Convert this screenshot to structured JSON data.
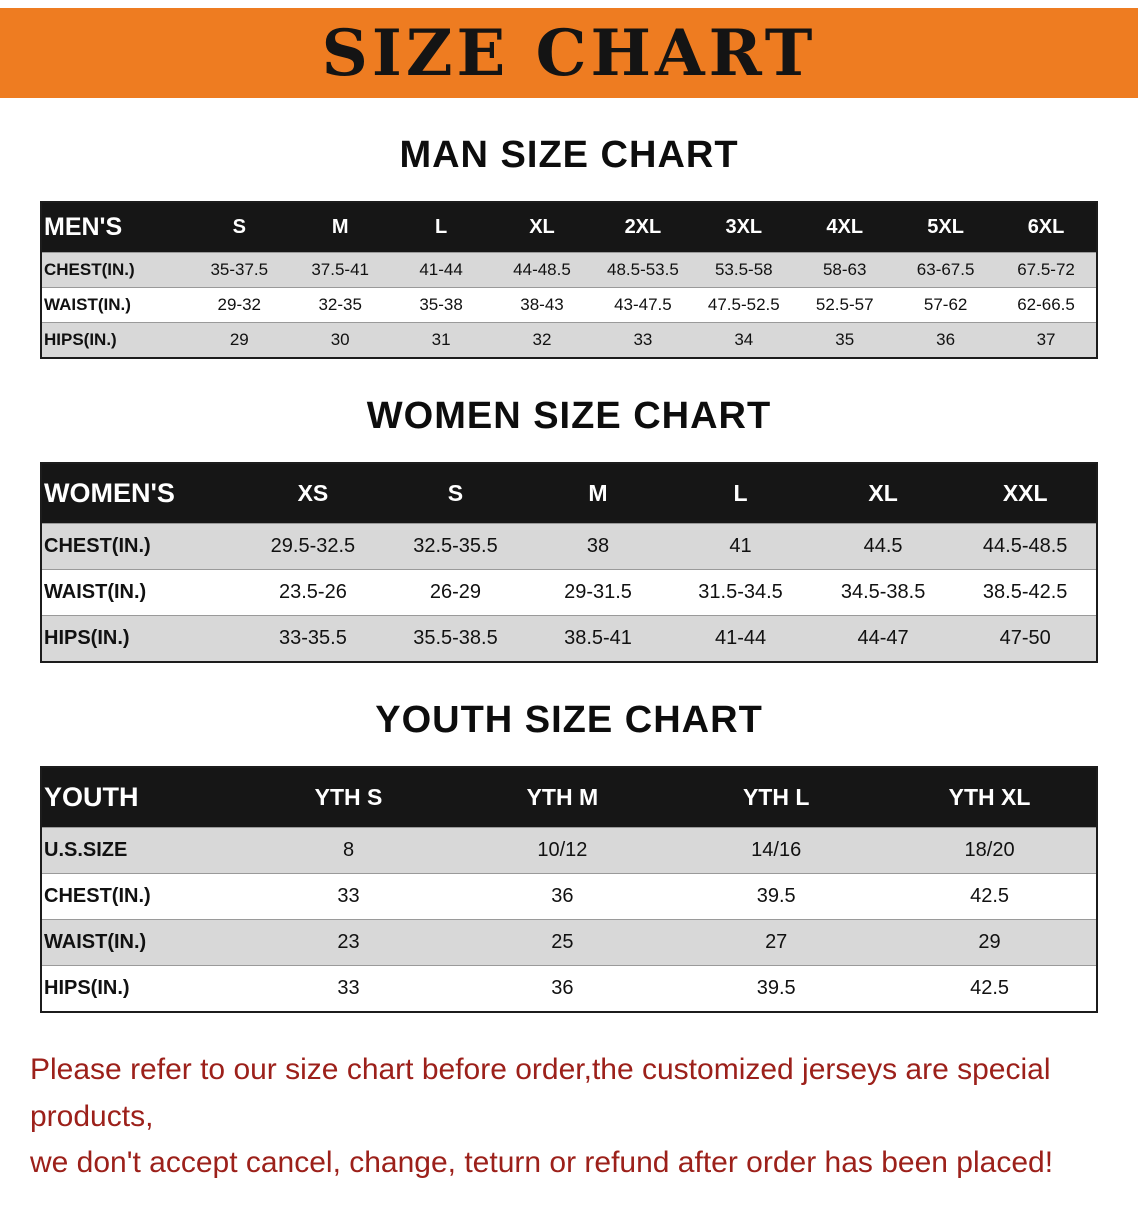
{
  "colors": {
    "banner_bg": "#ee7c21",
    "table_header_bg": "#161616",
    "stripe_bg": "#d8d8d8",
    "notice_color": "#9c201a"
  },
  "banner": {
    "title": "SIZE CHART"
  },
  "sections": [
    {
      "id": "mens",
      "heading": "MAN SIZE CHART",
      "header": [
        "MEN'S",
        "S",
        "M",
        "L",
        "XL",
        "2XL",
        "3XL",
        "4XL",
        "5XL",
        "6XL"
      ],
      "rows": [
        {
          "label": "CHEST(IN.)",
          "values": [
            "35-37.5",
            "37.5-41",
            "41-44",
            "44-48.5",
            "48.5-53.5",
            "53.5-58",
            "58-63",
            "63-67.5",
            "67.5-72"
          ]
        },
        {
          "label": "WAIST(IN.)",
          "values": [
            "29-32",
            "32-35",
            "35-38",
            "38-43",
            "43-47.5",
            "47.5-52.5",
            "52.5-57",
            "57-62",
            "62-66.5"
          ]
        },
        {
          "label": "HIPS(IN.)",
          "values": [
            "29",
            "30",
            "31",
            "32",
            "33",
            "34",
            "35",
            "36",
            "37"
          ]
        }
      ]
    },
    {
      "id": "womens",
      "heading": "WOMEN SIZE CHART",
      "header": [
        "WOMEN'S",
        "XS",
        "S",
        "M",
        "L",
        "XL",
        "XXL"
      ],
      "rows": [
        {
          "label": "CHEST(IN.)",
          "values": [
            "29.5-32.5",
            "32.5-35.5",
            "38",
            "41",
            "44.5",
            "44.5-48.5"
          ]
        },
        {
          "label": "WAIST(IN.)",
          "values": [
            "23.5-26",
            "26-29",
            "29-31.5",
            "31.5-34.5",
            "34.5-38.5",
            "38.5-42.5"
          ]
        },
        {
          "label": "HIPS(IN.)",
          "values": [
            "33-35.5",
            "35.5-38.5",
            "38.5-41",
            "41-44",
            "44-47",
            "47-50"
          ]
        }
      ]
    },
    {
      "id": "youth",
      "heading": "YOUTH SIZE CHART",
      "header": [
        "YOUTH",
        "YTH S",
        "YTH M",
        "YTH L",
        "YTH XL"
      ],
      "rows": [
        {
          "label": "U.S.SIZE",
          "values": [
            "8",
            "10/12",
            "14/16",
            "18/20"
          ]
        },
        {
          "label": "CHEST(IN.)",
          "values": [
            "33",
            "36",
            "39.5",
            "42.5"
          ]
        },
        {
          "label": "WAIST(IN.)",
          "values": [
            "23",
            "25",
            "27",
            "29"
          ]
        },
        {
          "label": "HIPS(IN.)",
          "values": [
            "33",
            "36",
            "39.5",
            "42.5"
          ]
        }
      ]
    }
  ],
  "footer": {
    "lines": [
      "Please refer to our size chart before order,the customized jerseys are special products,",
      "we don't accept cancel, change, teturn or refund after order has been placed!"
    ]
  }
}
